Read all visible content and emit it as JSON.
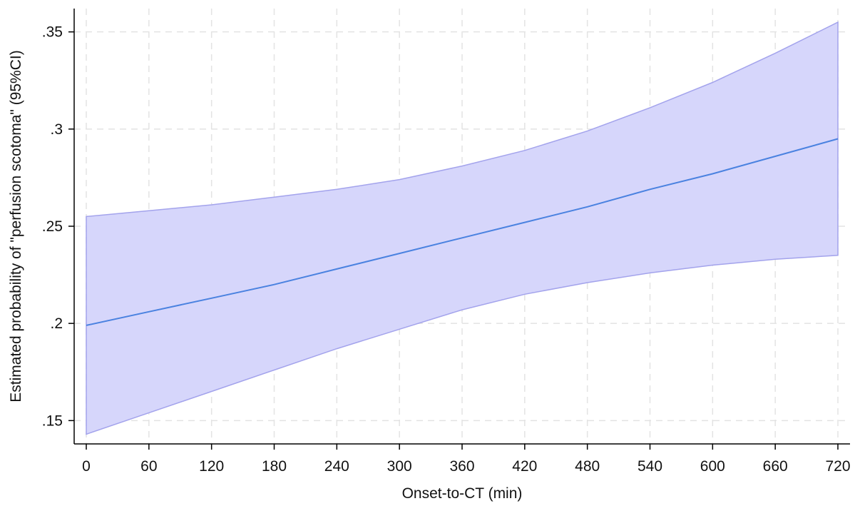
{
  "chart_data": {
    "type": "line",
    "title": "",
    "xlabel": "Onset-to-CT (min)",
    "ylabel": "Estimated probability of \"perfusion scotoma\" (95%CI)",
    "xlim": [
      0,
      720
    ],
    "ylim": [
      0.138,
      0.362
    ],
    "x_ticks": [
      0,
      60,
      120,
      180,
      240,
      300,
      360,
      420,
      480,
      540,
      600,
      660,
      720
    ],
    "x_tick_labels": [
      "0",
      "60",
      "120",
      "180",
      "240",
      "300",
      "360",
      "420",
      "480",
      "540",
      "600",
      "660",
      "720"
    ],
    "y_ticks": [
      0.15,
      0.2,
      0.25,
      0.3,
      0.35
    ],
    "y_tick_labels": [
      ".15",
      ".2",
      ".25",
      ".3",
      ".35"
    ],
    "grid": true,
    "legend": "none",
    "colors": {
      "line": "#4a82e0",
      "band_fill": "#d6d6fb",
      "band_edge": "#a3a3ec",
      "grid": "#e3e3e3",
      "axis": "#000000"
    },
    "x": [
      0,
      60,
      120,
      180,
      240,
      300,
      360,
      420,
      480,
      540,
      600,
      660,
      720
    ],
    "series": [
      {
        "estimate": [
          0.199,
          0.206,
          0.213,
          0.22,
          0.228,
          0.236,
          0.244,
          0.252,
          0.26,
          0.269,
          0.277,
          0.286,
          0.295
        ],
        "ci_lower": [
          0.143,
          0.154,
          0.165,
          0.176,
          0.187,
          0.197,
          0.207,
          0.215,
          0.221,
          0.226,
          0.23,
          0.233,
          0.235
        ],
        "ci_upper": [
          0.255,
          0.258,
          0.261,
          0.265,
          0.269,
          0.274,
          0.281,
          0.289,
          0.299,
          0.311,
          0.324,
          0.339,
          0.355
        ]
      }
    ]
  }
}
